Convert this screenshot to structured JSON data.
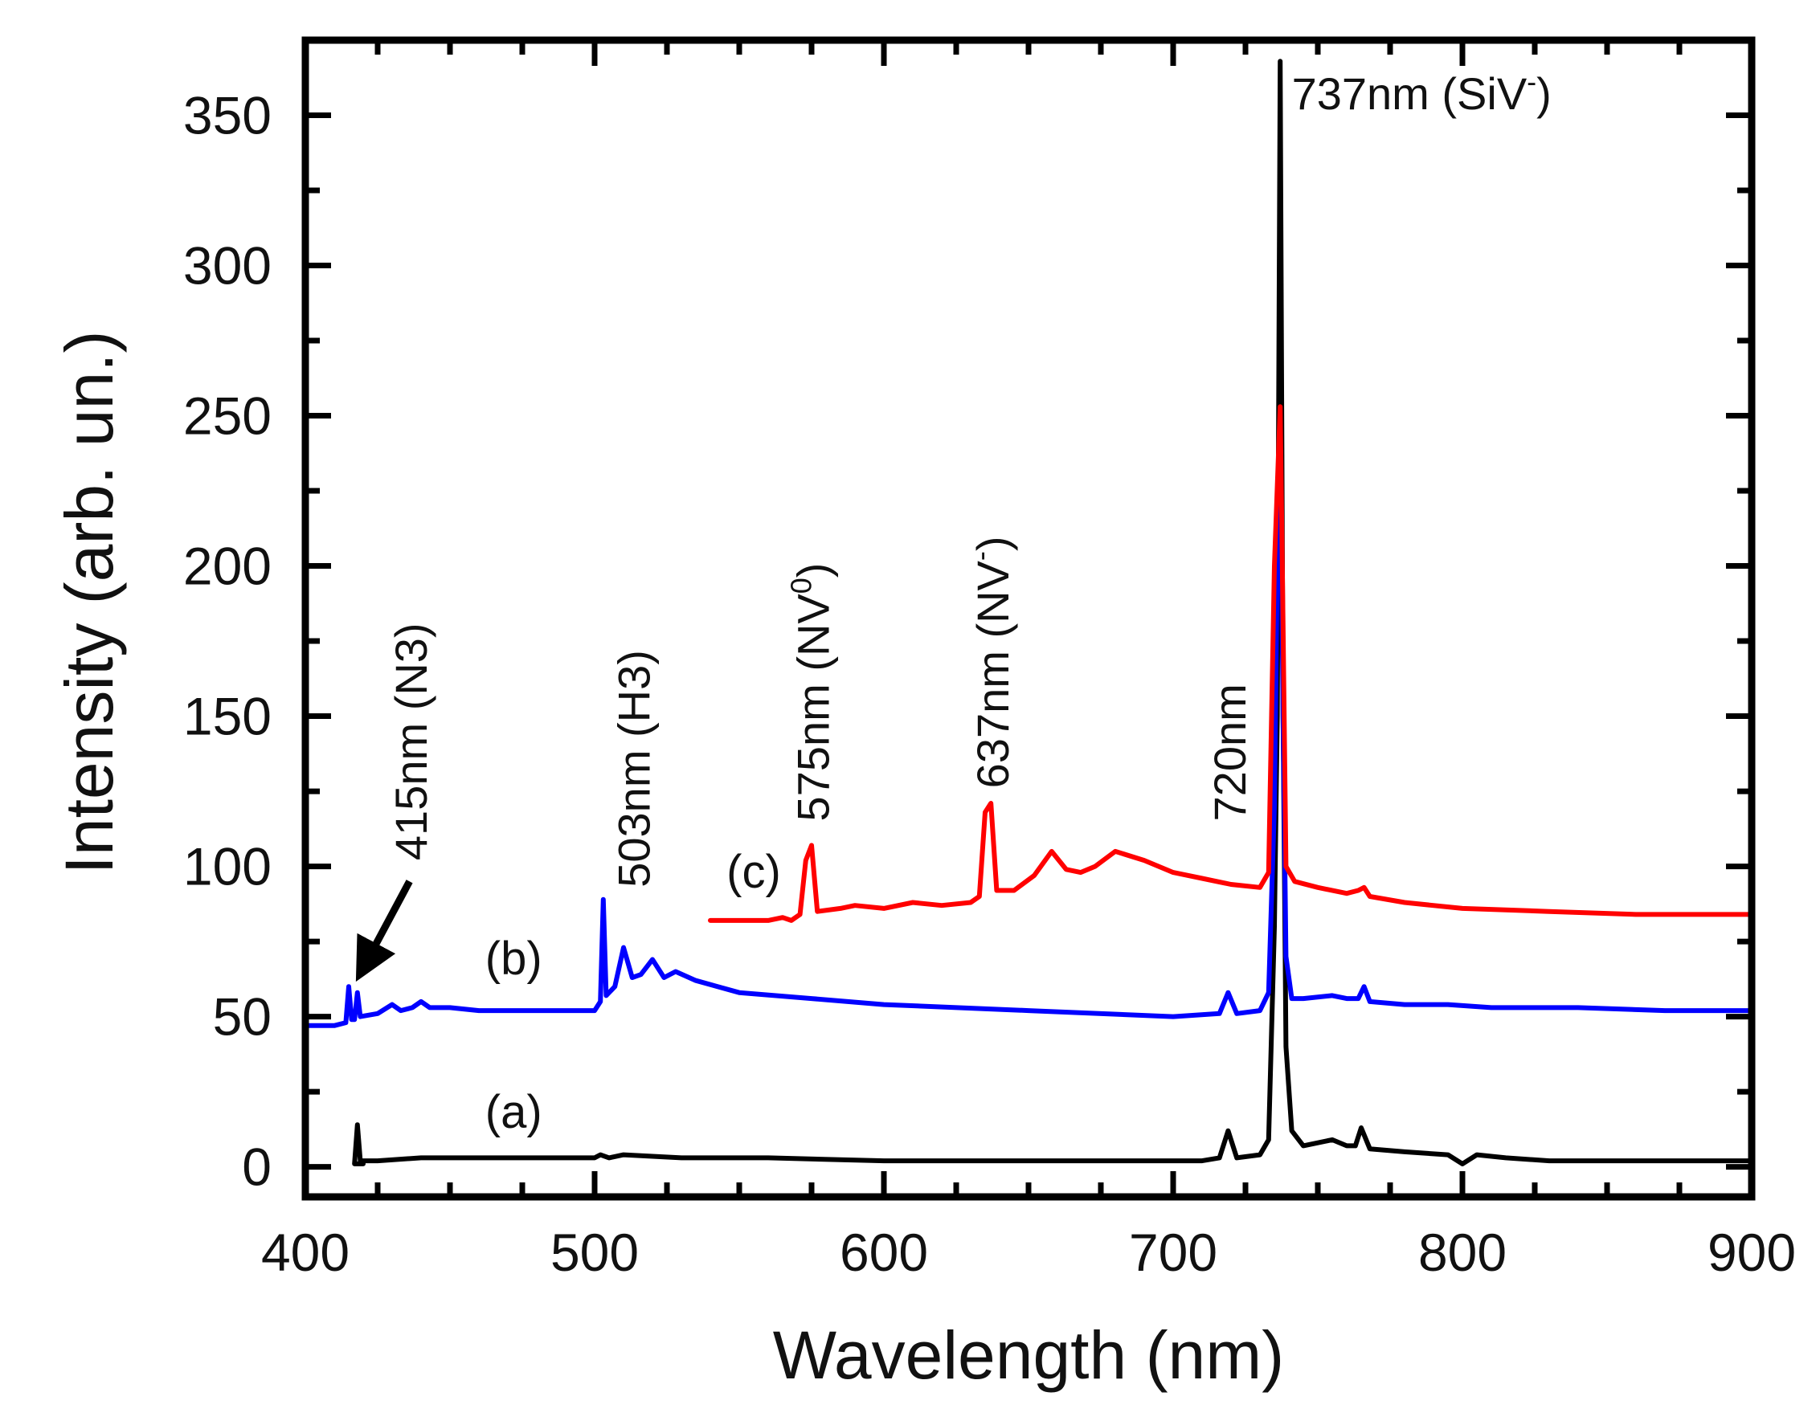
{
  "chart_data": {
    "type": "line",
    "title": "",
    "xlabel": "Wavelength (nm)",
    "ylabel": "Intensity (arb. un.)",
    "xlim": [
      400,
      900
    ],
    "ylim": [
      -10,
      375
    ],
    "x_ticks": [
      400,
      500,
      600,
      700,
      800,
      900
    ],
    "y_ticks": [
      0,
      50,
      100,
      150,
      200,
      250,
      300,
      350
    ],
    "grid": false,
    "series": [
      {
        "name": "(a)",
        "color": "#000000",
        "points": [
          [
            420,
            1
          ],
          [
            417,
            1
          ],
          [
            418,
            14
          ],
          [
            419,
            2
          ],
          [
            425,
            2
          ],
          [
            440,
            3
          ],
          [
            460,
            3
          ],
          [
            480,
            3
          ],
          [
            500,
            3
          ],
          [
            502,
            4
          ],
          [
            505,
            3
          ],
          [
            510,
            4
          ],
          [
            530,
            3
          ],
          [
            560,
            3
          ],
          [
            600,
            2
          ],
          [
            650,
            2
          ],
          [
            700,
            2
          ],
          [
            710,
            2
          ],
          [
            716,
            3
          ],
          [
            719,
            12
          ],
          [
            722,
            3
          ],
          [
            730,
            4
          ],
          [
            733,
            9
          ],
          [
            735,
            80
          ],
          [
            736,
            150
          ],
          [
            737,
            368
          ],
          [
            738,
            150
          ],
          [
            739,
            40
          ],
          [
            741,
            12
          ],
          [
            745,
            7
          ],
          [
            750,
            8
          ],
          [
            755,
            9
          ],
          [
            760,
            7
          ],
          [
            763,
            7
          ],
          [
            765,
            13
          ],
          [
            768,
            6
          ],
          [
            780,
            5
          ],
          [
            795,
            4
          ],
          [
            800,
            1
          ],
          [
            805,
            4
          ],
          [
            815,
            3
          ],
          [
            830,
            2
          ],
          [
            860,
            2
          ],
          [
            900,
            2
          ]
        ]
      },
      {
        "name": "(b)",
        "color": "#0000ff",
        "points": [
          [
            400,
            47
          ],
          [
            410,
            47
          ],
          [
            414,
            48
          ],
          [
            415,
            60
          ],
          [
            416,
            49
          ],
          [
            417,
            49
          ],
          [
            418,
            58
          ],
          [
            419,
            50
          ],
          [
            425,
            51
          ],
          [
            430,
            54
          ],
          [
            433,
            52
          ],
          [
            437,
            53
          ],
          [
            440,
            55
          ],
          [
            443,
            53
          ],
          [
            450,
            53
          ],
          [
            460,
            52
          ],
          [
            480,
            52
          ],
          [
            500,
            52
          ],
          [
            502,
            55
          ],
          [
            503,
            89
          ],
          [
            504,
            57
          ],
          [
            507,
            60
          ],
          [
            510,
            73
          ],
          [
            513,
            63
          ],
          [
            516,
            64
          ],
          [
            520,
            69
          ],
          [
            524,
            63
          ],
          [
            528,
            65
          ],
          [
            535,
            62
          ],
          [
            550,
            58
          ],
          [
            575,
            56
          ],
          [
            600,
            54
          ],
          [
            650,
            52
          ],
          [
            700,
            50
          ],
          [
            716,
            51
          ],
          [
            719,
            58
          ],
          [
            722,
            51
          ],
          [
            730,
            52
          ],
          [
            733,
            58
          ],
          [
            735,
            120
          ],
          [
            736,
            200
          ],
          [
            737,
            245
          ],
          [
            738,
            150
          ],
          [
            739,
            70
          ],
          [
            741,
            56
          ],
          [
            745,
            56
          ],
          [
            755,
            57
          ],
          [
            760,
            56
          ],
          [
            764,
            56
          ],
          [
            766,
            60
          ],
          [
            768,
            55
          ],
          [
            780,
            54
          ],
          [
            795,
            54
          ],
          [
            810,
            53
          ],
          [
            840,
            53
          ],
          [
            870,
            52
          ],
          [
            900,
            52
          ]
        ]
      },
      {
        "name": "(c)",
        "color": "#ff0000",
        "points": [
          [
            540,
            82
          ],
          [
            560,
            82
          ],
          [
            565,
            83
          ],
          [
            568,
            82
          ],
          [
            571,
            84
          ],
          [
            573,
            102
          ],
          [
            575,
            107
          ],
          [
            577,
            85
          ],
          [
            585,
            86
          ],
          [
            590,
            87
          ],
          [
            600,
            86
          ],
          [
            610,
            88
          ],
          [
            620,
            87
          ],
          [
            630,
            88
          ],
          [
            633,
            90
          ],
          [
            635,
            118
          ],
          [
            637,
            121
          ],
          [
            639,
            92
          ],
          [
            645,
            92
          ],
          [
            652,
            97
          ],
          [
            658,
            105
          ],
          [
            663,
            99
          ],
          [
            668,
            98
          ],
          [
            673,
            100
          ],
          [
            680,
            105
          ],
          [
            690,
            102
          ],
          [
            700,
            98
          ],
          [
            710,
            96
          ],
          [
            720,
            94
          ],
          [
            730,
            93
          ],
          [
            733,
            98
          ],
          [
            735,
            200
          ],
          [
            737,
            253
          ],
          [
            738,
            180
          ],
          [
            739,
            100
          ],
          [
            742,
            95
          ],
          [
            750,
            93
          ],
          [
            760,
            91
          ],
          [
            764,
            92
          ],
          [
            766,
            93
          ],
          [
            768,
            90
          ],
          [
            780,
            88
          ],
          [
            800,
            86
          ],
          [
            830,
            85
          ],
          [
            860,
            84
          ],
          [
            900,
            84
          ]
        ]
      }
    ],
    "series_labels": [
      {
        "text": "(a)",
        "x": 472,
        "y": 13
      },
      {
        "text": "(b)",
        "x": 472,
        "y": 64
      },
      {
        "text": "(c)",
        "x": 555,
        "y": 93
      }
    ],
    "annotations": [
      {
        "text": "415nm (N3)",
        "x": 442,
        "y": 102,
        "rotation": -90
      },
      {
        "text": "503nm (H3)",
        "x": 519,
        "y": 93,
        "rotation": -90
      },
      {
        "text": "575nm (NV",
        "sup": "0",
        "close": ")",
        "x": 581,
        "y": 115,
        "rotation": -90
      },
      {
        "text": "637nm (NV",
        "sup": "-",
        "close": ")",
        "x": 643,
        "y": 126,
        "rotation": -90
      },
      {
        "text": "720nm",
        "x": 725,
        "y": 115,
        "rotation": -90
      },
      {
        "text": "737nm (SiV",
        "sup": "-",
        "close": ")",
        "x": 741,
        "y": 352,
        "rotation": 0
      }
    ],
    "arrow": {
      "from": [
        436,
        95
      ],
      "to": [
        421,
        68
      ]
    }
  }
}
